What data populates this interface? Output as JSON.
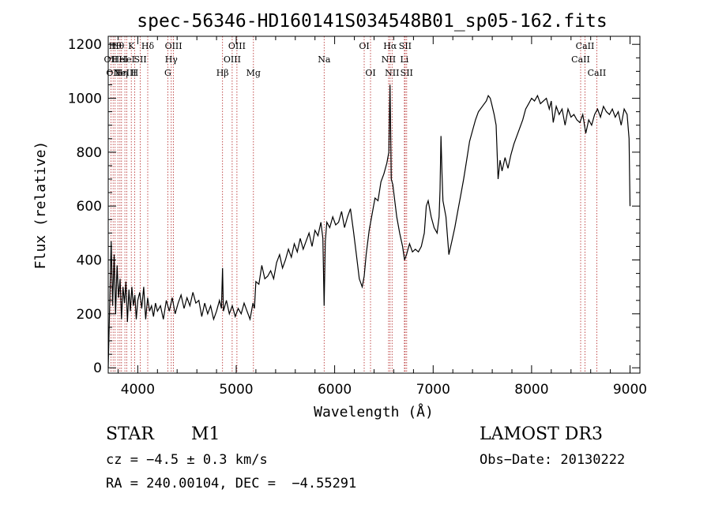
{
  "chart_data": {
    "type": "line",
    "title": "spec-56346-HD160141S034548B01_sp05-162.fits",
    "xlabel": "Wavelength (Å)",
    "ylabel": "Flux (relative)",
    "xlim": [
      3700,
      9100
    ],
    "ylim": [
      -20,
      1230
    ],
    "xticks": [
      4000,
      5000,
      6000,
      7000,
      8000,
      9000
    ],
    "yticks": [
      0,
      200,
      400,
      600,
      800,
      1000,
      1200
    ],
    "series": [
      {
        "name": "spectrum",
        "x": [
          3700,
          3710,
          3730,
          3745,
          3760,
          3775,
          3790,
          3805,
          3820,
          3835,
          3850,
          3865,
          3880,
          3895,
          3910,
          3925,
          3940,
          3955,
          3970,
          3985,
          4000,
          4020,
          4040,
          4060,
          4080,
          4100,
          4120,
          4140,
          4160,
          4180,
          4200,
          4230,
          4260,
          4290,
          4320,
          4350,
          4380,
          4410,
          4440,
          4470,
          4500,
          4530,
          4560,
          4590,
          4620,
          4650,
          4680,
          4710,
          4740,
          4770,
          4800,
          4830,
          4850,
          4861,
          4870,
          4900,
          4930,
          4960,
          4990,
          5020,
          5050,
          5080,
          5110,
          5140,
          5170,
          5185,
          5200,
          5230,
          5260,
          5290,
          5320,
          5350,
          5380,
          5410,
          5440,
          5470,
          5500,
          5530,
          5560,
          5590,
          5620,
          5650,
          5680,
          5710,
          5740,
          5770,
          5800,
          5830,
          5860,
          5880,
          5893,
          5905,
          5920,
          5950,
          5980,
          6010,
          6040,
          6070,
          6100,
          6130,
          6160,
          6190,
          6220,
          6250,
          6280,
          6300,
          6320,
          6350,
          6380,
          6410,
          6440,
          6470,
          6500,
          6530,
          6550,
          6562,
          6575,
          6590,
          6610,
          6630,
          6660,
          6690,
          6710,
          6730,
          6760,
          6790,
          6820,
          6850,
          6880,
          6910,
          6930,
          6950,
          6980,
          7010,
          7040,
          7060,
          7070,
          7080,
          7090,
          7100,
          7130,
          7160,
          7190,
          7220,
          7250,
          7280,
          7310,
          7340,
          7370,
          7400,
          7430,
          7460,
          7500,
          7540,
          7560,
          7580,
          7600,
          7620,
          7640,
          7660,
          7680,
          7700,
          7730,
          7760,
          7790,
          7820,
          7850,
          7880,
          7910,
          7940,
          7970,
          8000,
          8030,
          8060,
          8090,
          8120,
          8150,
          8180,
          8200,
          8220,
          8250,
          8280,
          8310,
          8340,
          8370,
          8400,
          8430,
          8460,
          8490,
          8520,
          8550,
          8580,
          8610,
          8640,
          8670,
          8700,
          8730,
          8760,
          8790,
          8820,
          8850,
          8880,
          8910,
          8940,
          8970,
          8990,
          9000
        ],
        "y": [
          0,
          150,
          470,
          230,
          420,
          200,
          380,
          260,
          330,
          180,
          300,
          240,
          320,
          170,
          290,
          210,
          300,
          230,
          270,
          180,
          250,
          280,
          220,
          300,
          180,
          260,
          210,
          230,
          190,
          240,
          210,
          230,
          180,
          250,
          210,
          260,
          200,
          240,
          270,
          220,
          260,
          230,
          280,
          240,
          250,
          190,
          240,
          200,
          230,
          180,
          210,
          250,
          220,
          370,
          210,
          250,
          200,
          230,
          190,
          220,
          200,
          240,
          210,
          180,
          240,
          220,
          320,
          310,
          380,
          330,
          340,
          360,
          330,
          390,
          420,
          370,
          400,
          440,
          410,
          460,
          430,
          480,
          440,
          470,
          500,
          450,
          510,
          490,
          540,
          480,
          230,
          470,
          540,
          520,
          560,
          530,
          540,
          580,
          520,
          560,
          590,
          510,
          420,
          330,
          300,
          340,
          420,
          510,
          570,
          630,
          620,
          690,
          720,
          760,
          800,
          1050,
          700,
          680,
          620,
          560,
          500,
          450,
          400,
          420,
          460,
          430,
          440,
          430,
          450,
          500,
          600,
          620,
          560,
          520,
          500,
          560,
          660,
          860,
          720,
          620,
          560,
          420,
          470,
          520,
          580,
          640,
          700,
          770,
          840,
          880,
          920,
          950,
          970,
          990,
          1010,
          1000,
          970,
          940,
          900,
          700,
          770,
          730,
          780,
          740,
          790,
          830,
          860,
          890,
          920,
          960,
          980,
          1000,
          990,
          1010,
          980,
          990,
          1000,
          960,
          990,
          910,
          970,
          940,
          960,
          900,
          960,
          930,
          940,
          920,
          910,
          940,
          870,
          920,
          900,
          940,
          960,
          930,
          970,
          950,
          940,
          960,
          930,
          950,
          900,
          960,
          940,
          850,
          600
        ]
      }
    ],
    "lines": [
      {
        "wl": 3727,
        "label": "OII",
        "row": 1
      },
      {
        "wl": 3750,
        "label": "OII",
        "row": 2
      },
      {
        "wl": 3770,
        "label": "Hθ",
        "row": 0
      },
      {
        "wl": 3798,
        "label": "Hθ",
        "row": 0
      },
      {
        "wl": 3819,
        "label": "HeI",
        "row": 1
      },
      {
        "wl": 3835,
        "label": "Hη",
        "row": 2
      },
      {
        "wl": 3869,
        "label": "NeIII",
        "row": 2
      },
      {
        "wl": 3889,
        "label": "HeI",
        "row": 1
      },
      {
        "wl": 3934,
        "label": "K",
        "row": 0
      },
      {
        "wl": 3968,
        "label": "H",
        "row": 2
      },
      {
        "wl": 4026,
        "label": "SII",
        "row": 1
      },
      {
        "wl": 4101,
        "label": "Hδ",
        "row": 0
      },
      {
        "wl": 4305,
        "label": "G",
        "row": 2
      },
      {
        "wl": 4340,
        "label": "Hγ",
        "row": 1
      },
      {
        "wl": 4363,
        "label": "OIII",
        "row": 0
      },
      {
        "wl": 4861,
        "label": "Hβ",
        "row": 2
      },
      {
        "wl": 4959,
        "label": "OIII",
        "row": 1
      },
      {
        "wl": 5007,
        "label": "OIII",
        "row": 0
      },
      {
        "wl": 5175,
        "label": "Mg",
        "row": 2
      },
      {
        "wl": 5893,
        "label": "Na",
        "row": 1
      },
      {
        "wl": 6300,
        "label": "OI",
        "row": 0
      },
      {
        "wl": 6364,
        "label": "OI",
        "row": 2
      },
      {
        "wl": 6548,
        "label": "NII",
        "row": 1
      },
      {
        "wl": 6563,
        "label": "Hα",
        "row": 0
      },
      {
        "wl": 6583,
        "label": "NII",
        "row": 2
      },
      {
        "wl": 6708,
        "label": "Li",
        "row": 1
      },
      {
        "wl": 6716,
        "label": "SII",
        "row": 0
      },
      {
        "wl": 6731,
        "label": "SII",
        "row": 2
      },
      {
        "wl": 8498,
        "label": "CaII",
        "row": 1
      },
      {
        "wl": 8542,
        "label": "CaII",
        "row": 0
      },
      {
        "wl": 8662,
        "label": "CaII",
        "row": 2
      }
    ]
  },
  "info": {
    "object_class": "STAR",
    "subclass": "M1",
    "survey": "LAMOST DR3",
    "redshift": "cz = −4.5 ± 0.3 km/s",
    "obs_date": "Obs−Date: 20130222",
    "coords": "RA = 240.00104, DEC =  −4.55291"
  },
  "colors": {
    "line_marker": "#b22222",
    "spectrum": "#000000",
    "axis": "#000000"
  }
}
